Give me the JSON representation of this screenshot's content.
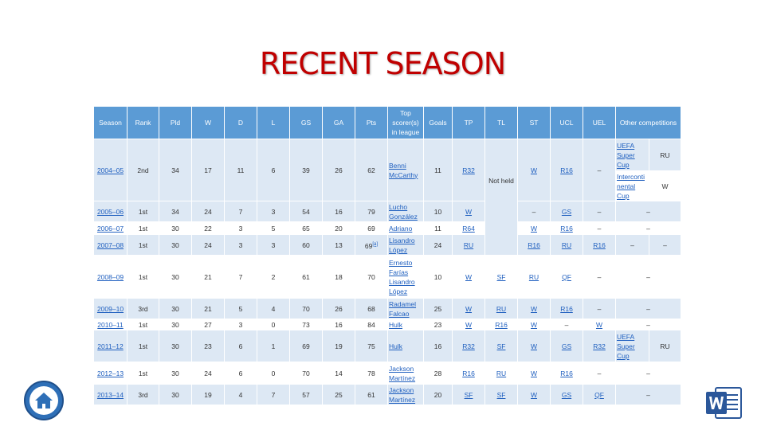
{
  "title": "RECENT SEASON",
  "headers": [
    "Season",
    "Rank",
    "Pld",
    "W",
    "D",
    "L",
    "GS",
    "GA",
    "Pts",
    "Top scorer(s) in league",
    "Goals",
    "TP",
    "TL",
    "ST",
    "UCL",
    "UEL",
    "Other competitions"
  ],
  "rows": [
    {
      "season": "2004–05",
      "rank": "2nd",
      "pld": "34",
      "w": "17",
      "d": "11",
      "l": "6",
      "gs": "39",
      "ga": "26",
      "pts": "62",
      "scorer": "Benni McCarthy",
      "goals": "11",
      "tp": "R32",
      "st": "W",
      "ucl": "R16",
      "uel": "–",
      "other1": "UEFA Super Cup",
      "other1_res": "RU",
      "other2": "Interconti nental Cup",
      "other2_res": "W"
    },
    {
      "season": "2005–06",
      "rank": "1st",
      "pld": "34",
      "w": "24",
      "d": "7",
      "l": "3",
      "gs": "54",
      "ga": "16",
      "pts": "79",
      "scorer": "Lucho González",
      "goals": "10",
      "tp": "W",
      "st": "–",
      "ucl": "GS",
      "uel": "–",
      "other": "–"
    },
    {
      "season": "2006–07",
      "rank": "1st",
      "pld": "30",
      "w": "22",
      "d": "3",
      "l": "5",
      "gs": "65",
      "ga": "20",
      "pts": "69",
      "scorer": "Adriano",
      "goals": "11",
      "tp": "R64",
      "st": "W",
      "ucl": "R16",
      "uel": "–",
      "other": "–"
    },
    {
      "season": "2007–08",
      "rank": "1st",
      "pld": "30",
      "w": "24",
      "d": "3",
      "l": "3",
      "gs": "60",
      "ga": "13",
      "pts": "69",
      "pts_note": "[a]",
      "scorer": "Lisandro López",
      "goals": "24",
      "tp": "RU",
      "tl": "R16",
      "st": "RU",
      "ucl": "R16",
      "uel": "–",
      "other": "–"
    },
    {
      "season": "2008–09",
      "rank": "1st",
      "pld": "30",
      "w": "21",
      "d": "7",
      "l": "2",
      "gs": "61",
      "ga": "18",
      "pts": "70",
      "scorer": "Ernesto Farías Lisandro López",
      "goals": "10",
      "tp": "W",
      "tl": "SF",
      "st": "RU",
      "ucl": "QF",
      "uel": "–",
      "other": "–"
    },
    {
      "season": "2009–10",
      "rank": "3rd",
      "pld": "30",
      "w": "21",
      "d": "5",
      "l": "4",
      "gs": "70",
      "ga": "26",
      "pts": "68",
      "scorer": "Radamel Falcao",
      "goals": "25",
      "tp": "W",
      "tl": "RU",
      "st": "W",
      "ucl": "R16",
      "uel": "–",
      "other": "–"
    },
    {
      "season": "2010–11",
      "rank": "1st",
      "pld": "30",
      "w": "27",
      "d": "3",
      "l": "0",
      "gs": "73",
      "ga": "16",
      "pts": "84",
      "scorer": "Hulk",
      "goals": "23",
      "tp": "W",
      "tl": "R16",
      "st": "W",
      "ucl": "–",
      "uel": "W",
      "other": "–"
    },
    {
      "season": "2011–12",
      "rank": "1st",
      "pld": "30",
      "w": "23",
      "d": "6",
      "l": "1",
      "gs": "69",
      "ga": "19",
      "pts": "75",
      "scorer": "Hulk",
      "goals": "16",
      "tp": "R32",
      "tl": "SF",
      "st": "W",
      "ucl": "GS",
      "uel": "R32",
      "other1": "UEFA Super Cup",
      "other1_res": "RU"
    },
    {
      "season": "2012–13",
      "rank": "1st",
      "pld": "30",
      "w": "24",
      "d": "6",
      "l": "0",
      "gs": "70",
      "ga": "14",
      "pts": "78",
      "scorer": "Jackson Martínez",
      "goals": "28",
      "tp": "R16",
      "tl": "RU",
      "st": "W",
      "ucl": "R16",
      "uel": "–",
      "other": "–"
    },
    {
      "season": "2013–14",
      "rank": "3rd",
      "pld": "30",
      "w": "19",
      "d": "4",
      "l": "7",
      "gs": "57",
      "ga": "25",
      "pts": "61",
      "scorer": "Jackson Martínez",
      "goals": "20",
      "tp": "SF",
      "tl": "SF",
      "st": "W",
      "ucl": "GS",
      "uel": "QF",
      "other": "–"
    }
  ],
  "tl_not_held": "Not held"
}
